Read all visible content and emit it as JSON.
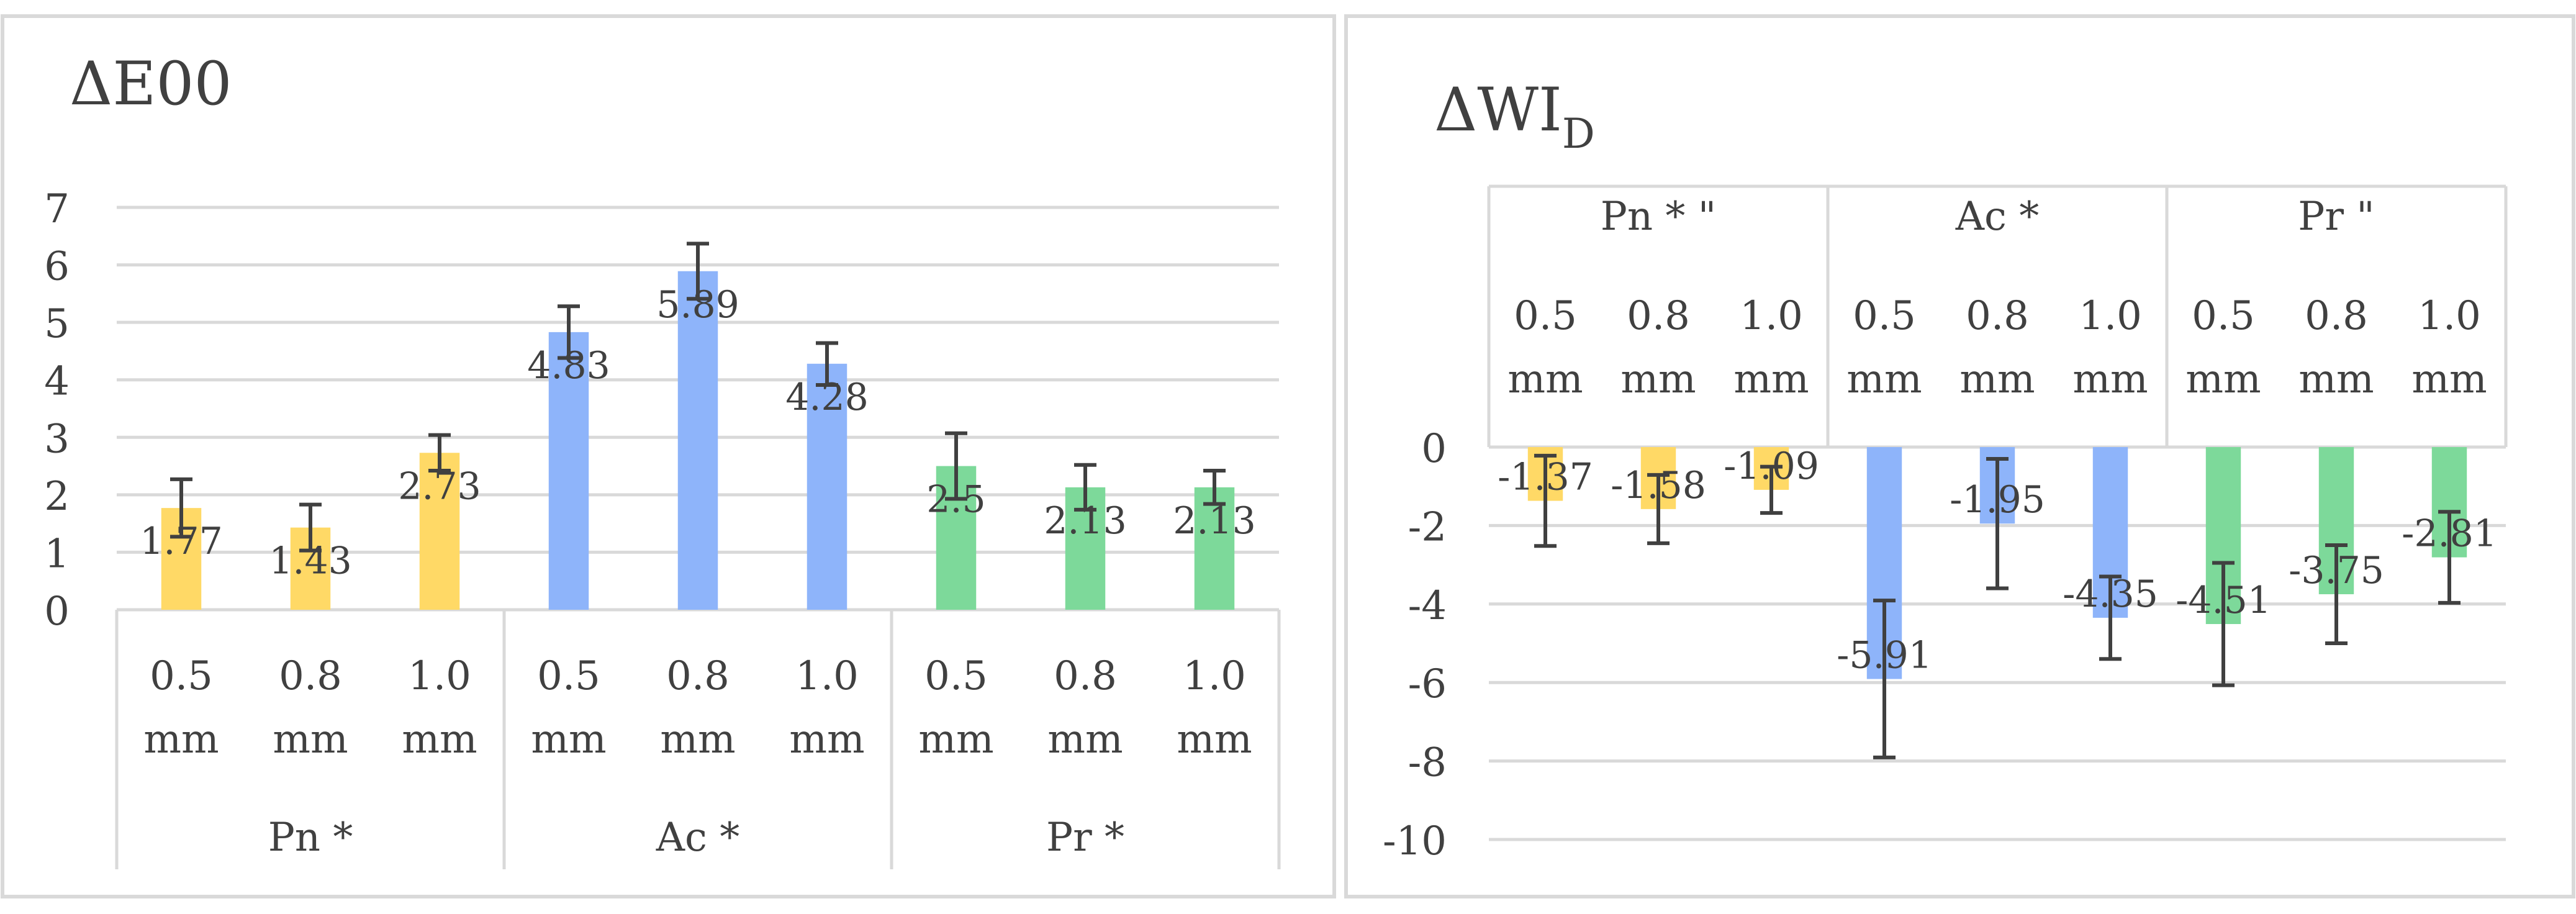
{
  "colors": {
    "pn": "#FFD966",
    "ac": "#8EB4FA",
    "pr": "#7DD99A",
    "grid": "#D9D9D9",
    "error_bar": "#404040",
    "text": "#404040",
    "frame": "#D9D9D9"
  },
  "chart_data": [
    {
      "type": "bar",
      "title": "ΔE00",
      "ylim": [
        0,
        7
      ],
      "y_ticks": [
        "0",
        "1",
        "2",
        "3",
        "4",
        "5",
        "6",
        "7"
      ],
      "grid": true,
      "legend": "none",
      "groups": [
        {
          "label": "Pn *",
          "color_key": "pn",
          "categories": [
            {
              "thickness": "0.5",
              "unit": "mm",
              "value": 1.77,
              "label": "1.77",
              "err_low": 1.27,
              "err_high": 2.27
            },
            {
              "thickness": "0.8",
              "unit": "mm",
              "value": 1.43,
              "label": "1.43",
              "err_low": 1.03,
              "err_high": 1.83
            },
            {
              "thickness": "1.0",
              "unit": "mm",
              "value": 2.73,
              "label": "2.73",
              "err_low": 2.42,
              "err_high": 3.04
            }
          ]
        },
        {
          "label": "Ac *",
          "color_key": "ac",
          "categories": [
            {
              "thickness": "0.5",
              "unit": "mm",
              "value": 4.83,
              "label": "4.83",
              "err_low": 4.38,
              "err_high": 5.28
            },
            {
              "thickness": "0.8",
              "unit": "mm",
              "value": 5.89,
              "label": "5.89",
              "err_low": 5.41,
              "err_high": 6.37
            },
            {
              "thickness": "1.0",
              "unit": "mm",
              "value": 4.28,
              "label": "4.28",
              "err_low": 3.91,
              "err_high": 4.64
            }
          ]
        },
        {
          "label": "Pr *",
          "color_key": "pr",
          "categories": [
            {
              "thickness": "0.5",
              "unit": "mm",
              "value": 2.5,
              "label": "2.5",
              "err_low": 1.93,
              "err_high": 3.07
            },
            {
              "thickness": "0.8",
              "unit": "mm",
              "value": 2.13,
              "label": "2.13",
              "err_low": 1.74,
              "err_high": 2.52
            },
            {
              "thickness": "1.0",
              "unit": "mm",
              "value": 2.13,
              "label": "2.13",
              "err_low": 1.84,
              "err_high": 2.42
            }
          ]
        }
      ]
    },
    {
      "type": "bar",
      "title": "ΔWI",
      "title_subscript": "D",
      "ylim": [
        -10,
        0
      ],
      "y_ticks": [
        "-10",
        "-8",
        "-6",
        "-4",
        "-2",
        "0"
      ],
      "grid": true,
      "legend": "none",
      "groups": [
        {
          "label": "Pn * \"",
          "color_key": "pn",
          "categories": [
            {
              "thickness": "0.5",
              "unit": "mm",
              "value": -1.37,
              "label": "-1.37",
              "err_low": -2.52,
              "err_high": -0.22
            },
            {
              "thickness": "0.8",
              "unit": "mm",
              "value": -1.58,
              "label": "-1.58",
              "err_low": -2.45,
              "err_high": -0.71
            },
            {
              "thickness": "1.0",
              "unit": "mm",
              "value": -1.09,
              "label": "-1.09",
              "err_low": -1.68,
              "err_high": -0.5
            }
          ]
        },
        {
          "label": "Ac *",
          "color_key": "ac",
          "categories": [
            {
              "thickness": "0.5",
              "unit": "mm",
              "value": -5.91,
              "label": "-5.91",
              "err_low": -7.91,
              "err_high": -3.91
            },
            {
              "thickness": "0.8",
              "unit": "mm",
              "value": -1.95,
              "label": "-1.95",
              "err_low": -3.6,
              "err_high": -0.3
            },
            {
              "thickness": "1.0",
              "unit": "mm",
              "value": -4.35,
              "label": "-4.35",
              "err_low": -5.4,
              "err_high": -3.3
            }
          ]
        },
        {
          "label": "Pr \"",
          "color_key": "pr",
          "categories": [
            {
              "thickness": "0.5",
              "unit": "mm",
              "value": -4.51,
              "label": "-4.51",
              "err_low": -6.07,
              "err_high": -2.95
            },
            {
              "thickness": "0.8",
              "unit": "mm",
              "value": -3.75,
              "label": "-3.75",
              "err_low": -5.0,
              "err_high": -2.5
            },
            {
              "thickness": "1.0",
              "unit": "mm",
              "value": -2.81,
              "label": "-2.81",
              "err_low": -3.97,
              "err_high": -1.65
            }
          ]
        }
      ]
    }
  ]
}
